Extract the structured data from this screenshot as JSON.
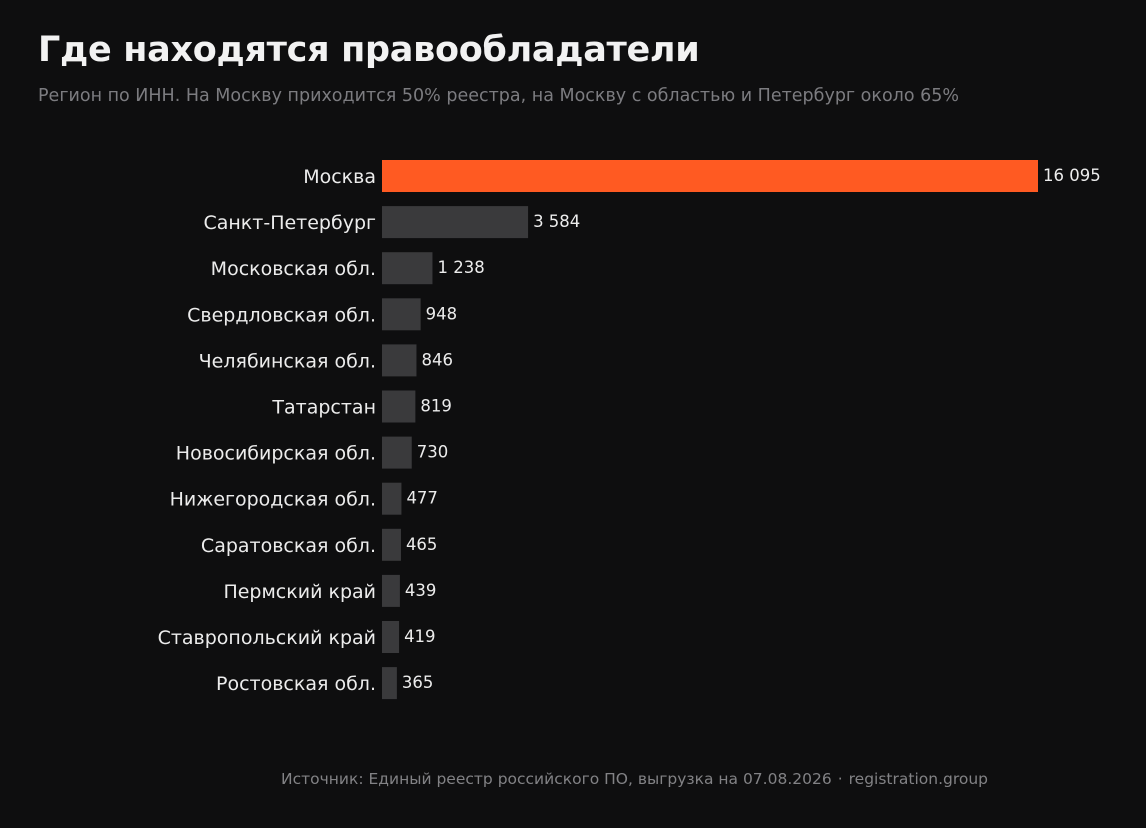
{
  "header": {
    "title": "Где находятся правообладатели",
    "subtitle": "Регион по ИНН. На Москву приходится 50% реестра, на Москву с областью и Петербург около 65%"
  },
  "footer": {
    "source": "Источник: Единый реестр российского ПО, выгрузка на 07.08.2026",
    "separator": "·",
    "site": "registration.group"
  },
  "colors": {
    "highlight": "#ff5a22",
    "bar": "#3a3a3c",
    "label": "#ececec",
    "value": "#ececec"
  },
  "chart_data": {
    "type": "bar",
    "orientation": "horizontal",
    "title": "Где находятся правообладатели",
    "subtitle": "Регион по ИНН. На Москву приходится 50% реестра, на Москву с областью и Петербург около 65%",
    "categories": [
      "Москва",
      "Санкт-Петербург",
      "Московская обл.",
      "Свердловская обл.",
      "Челябинская обл.",
      "Татарстан",
      "Новосибирская обл.",
      "Нижегородская обл.",
      "Саратовская обл.",
      "Пермский край",
      "Ставропольский край",
      "Ростовская обл."
    ],
    "values": [
      16095,
      3584,
      1238,
      948,
      846,
      819,
      730,
      477,
      465,
      439,
      419,
      365
    ],
    "value_labels": [
      "16 095",
      "3 584",
      "1 238",
      "948",
      "846",
      "819",
      "730",
      "477",
      "465",
      "439",
      "419",
      "365"
    ],
    "highlight_index": 0,
    "xlim": [
      0,
      16095
    ],
    "grid": false,
    "legend": "none"
  }
}
